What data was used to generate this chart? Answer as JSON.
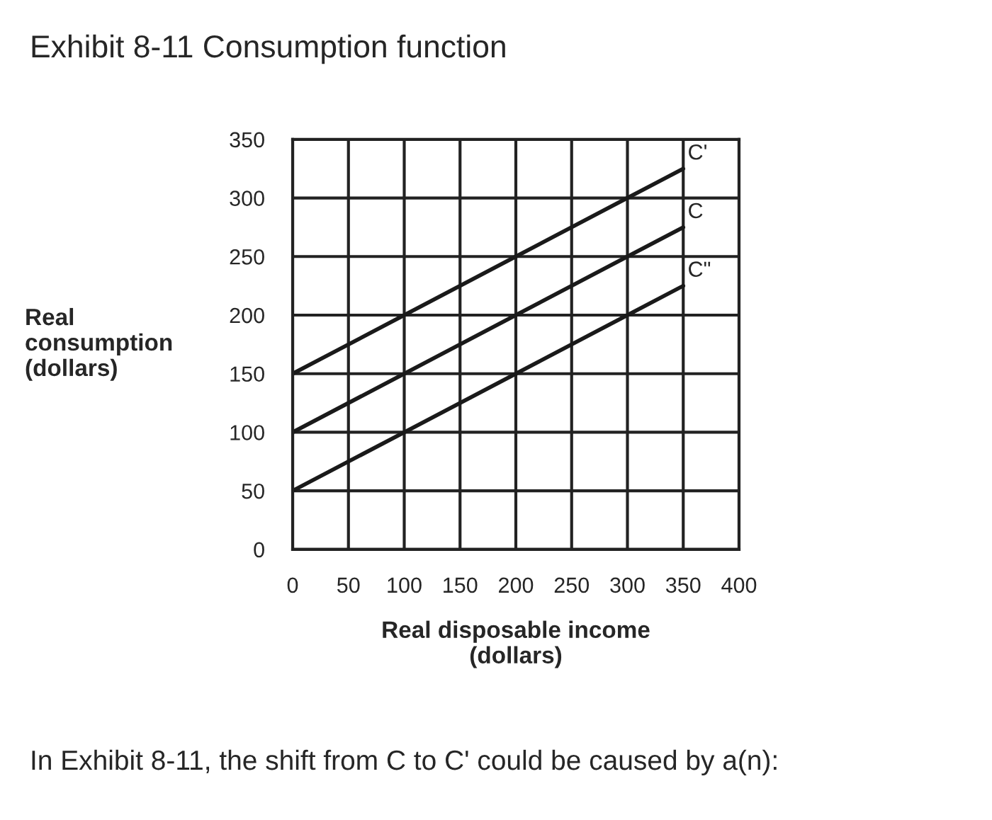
{
  "chart_data": {
    "type": "line",
    "title": "Exhibit 8-11 Consumption function",
    "xlabel": "Real disposable income\n(dollars)",
    "ylabel": "Real\nconsumption\n(dollars)",
    "x": [
      0,
      100,
      200,
      300,
      350
    ],
    "series": [
      {
        "name": "C'",
        "color": "#1a1a1a",
        "values": [
          150,
          200,
          250,
          300,
          325
        ]
      },
      {
        "name": "C",
        "color": "#1a1a1a",
        "values": [
          100,
          150,
          200,
          250,
          275
        ]
      },
      {
        "name": "C\"",
        "color": "#1a1a1a",
        "values": [
          50,
          100,
          150,
          200,
          225
        ]
      }
    ],
    "xlim": [
      0,
      400
    ],
    "ylim": [
      0,
      350
    ],
    "xticks": [
      0,
      50,
      100,
      150,
      200,
      250,
      300,
      350,
      400
    ],
    "yticks": [
      0,
      50,
      100,
      150,
      200,
      250,
      300,
      350
    ],
    "grid": true,
    "legend": false,
    "marker": "none",
    "line_style": "solid",
    "annotations": [
      "In Exhibit 8-11, the shift from C to C' could be caused by a(n):"
    ]
  }
}
